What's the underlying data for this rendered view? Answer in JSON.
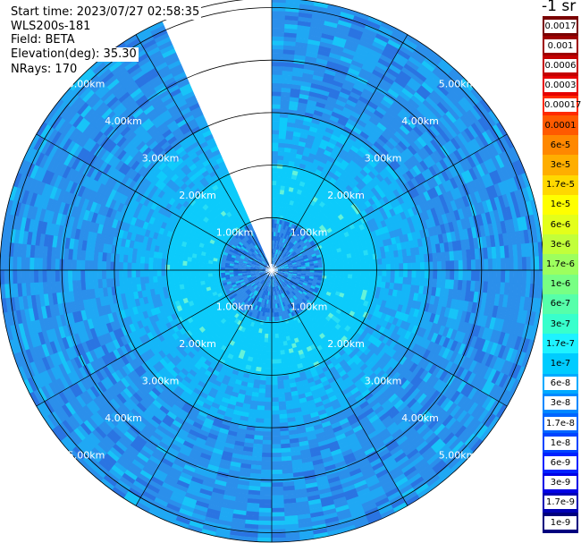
{
  "info": {
    "start_time": "Start time: 2023/07/27 02:58:35",
    "instrument": "WLS200s-181",
    "field": "Field: BETA",
    "elevation": "Elevation(deg): 35.30",
    "nrays": "NRays: 170"
  },
  "range_labels": [
    "1.00km",
    "2.00km",
    "3.00km",
    "4.00km",
    "5.00km"
  ],
  "colorbar": {
    "title": "-1 sr",
    "labels": [
      "0.0017",
      "0.001",
      "0.0006",
      "0.0003",
      "0.00017",
      "0.0001",
      "6e-5",
      "3e-5",
      "1.7e-5",
      "1e-5",
      "6e-6",
      "3e-6",
      "1.7e-6",
      "1e-6",
      "6e-7",
      "3e-7",
      "1.7e-7",
      "1e-7",
      "6e-8",
      "3e-8",
      "1.7e-8",
      "1e-8",
      "6e-9",
      "3e-9",
      "1.7e-9",
      "1e-9"
    ],
    "colors": [
      "#7a0000",
      "#9e0000",
      "#c40000",
      "#e60000",
      "#ff2a00",
      "#ff5a00",
      "#ff8800",
      "#ffae00",
      "#ffd800",
      "#ffff00",
      "#e4ff1a",
      "#c2ff3a",
      "#9dff5e",
      "#78ff84",
      "#56ffaa",
      "#38ffcc",
      "#1ef2ff",
      "#00ccff",
      "#00aaff",
      "#0088ff",
      "#0066ff",
      "#0044ff",
      "#0022ff",
      "#0000e6",
      "#0000b4",
      "#00007e"
    ]
  },
  "scan": {
    "gap_start_az_deg": 335,
    "gap_end_az_deg": 360
  }
}
